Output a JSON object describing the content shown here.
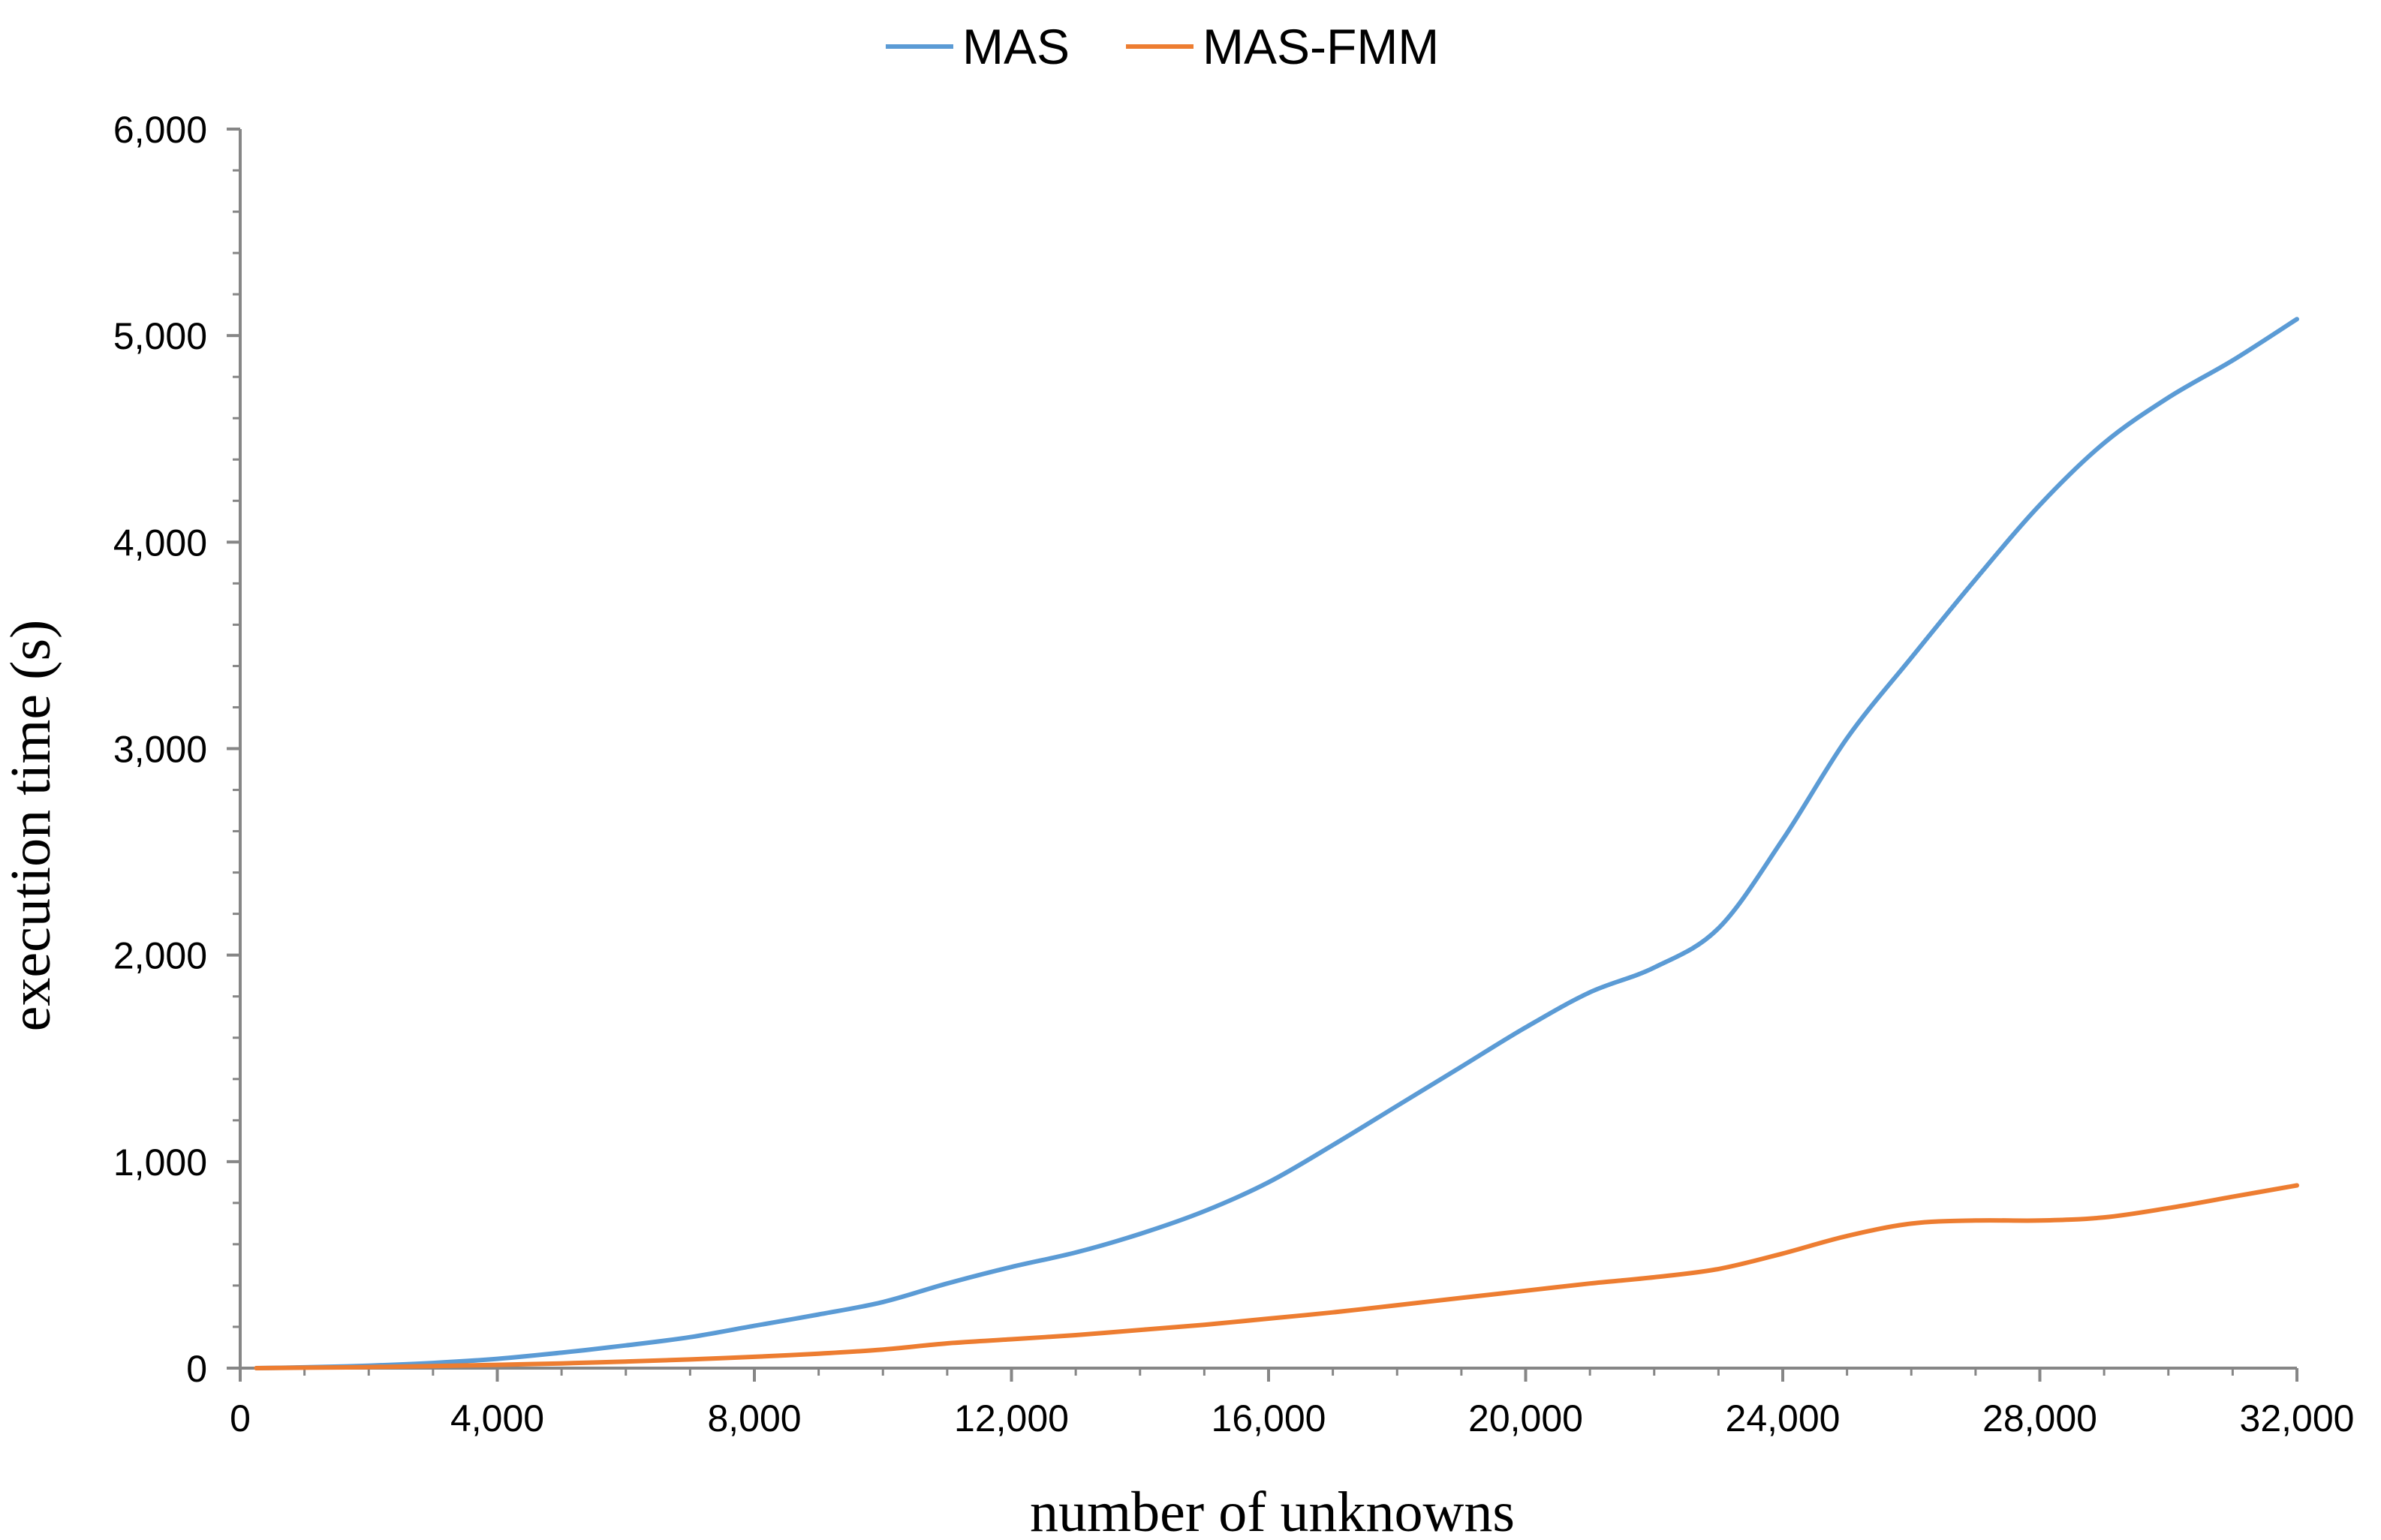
{
  "chart_data": {
    "type": "line",
    "xlabel": "number of unknowns",
    "ylabel": "execution time (s)",
    "xlim": [
      0,
      32000
    ],
    "ylim": [
      0,
      6000
    ],
    "x_ticks": [
      0,
      4000,
      8000,
      12000,
      16000,
      20000,
      24000,
      28000,
      32000
    ],
    "x_tick_labels": [
      "0",
      "4,000",
      "8,000",
      "12,000",
      "16,000",
      "20,000",
      "24,000",
      "28,000",
      "32,000"
    ],
    "y_ticks": [
      0,
      1000,
      2000,
      3000,
      4000,
      5000,
      6000
    ],
    "y_tick_labels": [
      "0",
      "1,000",
      "2,000",
      "3,000",
      "4,000",
      "5,000",
      "6,000"
    ],
    "grid": false,
    "legend_position": "top-center",
    "series": [
      {
        "name": "MAS",
        "color": "#5b9bd5",
        "x": [
          250,
          1000,
          2000,
          3000,
          4000,
          5000,
          6000,
          7000,
          8000,
          9000,
          10000,
          11000,
          12000,
          13000,
          14000,
          15000,
          16000,
          17000,
          18000,
          19000,
          20000,
          21000,
          22000,
          23000,
          24000,
          25000,
          26000,
          27000,
          28000,
          29000,
          30000,
          31000,
          32000
        ],
        "values": [
          0,
          4,
          12,
          25,
          45,
          75,
          110,
          150,
          205,
          260,
          320,
          410,
          490,
          560,
          650,
          760,
          900,
          1080,
          1270,
          1460,
          1650,
          1820,
          1940,
          2130,
          2560,
          3050,
          3440,
          3820,
          4180,
          4480,
          4700,
          4880,
          5080
        ]
      },
      {
        "name": "MAS-FMM",
        "color": "#ed7d31",
        "x": [
          250,
          1000,
          2000,
          3000,
          4000,
          5000,
          6000,
          7000,
          8000,
          9000,
          10000,
          11000,
          12000,
          13000,
          14000,
          15000,
          16000,
          17000,
          18000,
          19000,
          20000,
          21000,
          22000,
          23000,
          24000,
          25000,
          26000,
          27000,
          28000,
          29000,
          30000,
          31000,
          32000
        ],
        "values": [
          0,
          2,
          5,
          10,
          16,
          23,
          32,
          42,
          55,
          70,
          90,
          120,
          140,
          160,
          185,
          210,
          240,
          270,
          305,
          340,
          375,
          410,
          440,
          480,
          555,
          640,
          700,
          715,
          715,
          730,
          775,
          830,
          885
        ]
      }
    ]
  }
}
